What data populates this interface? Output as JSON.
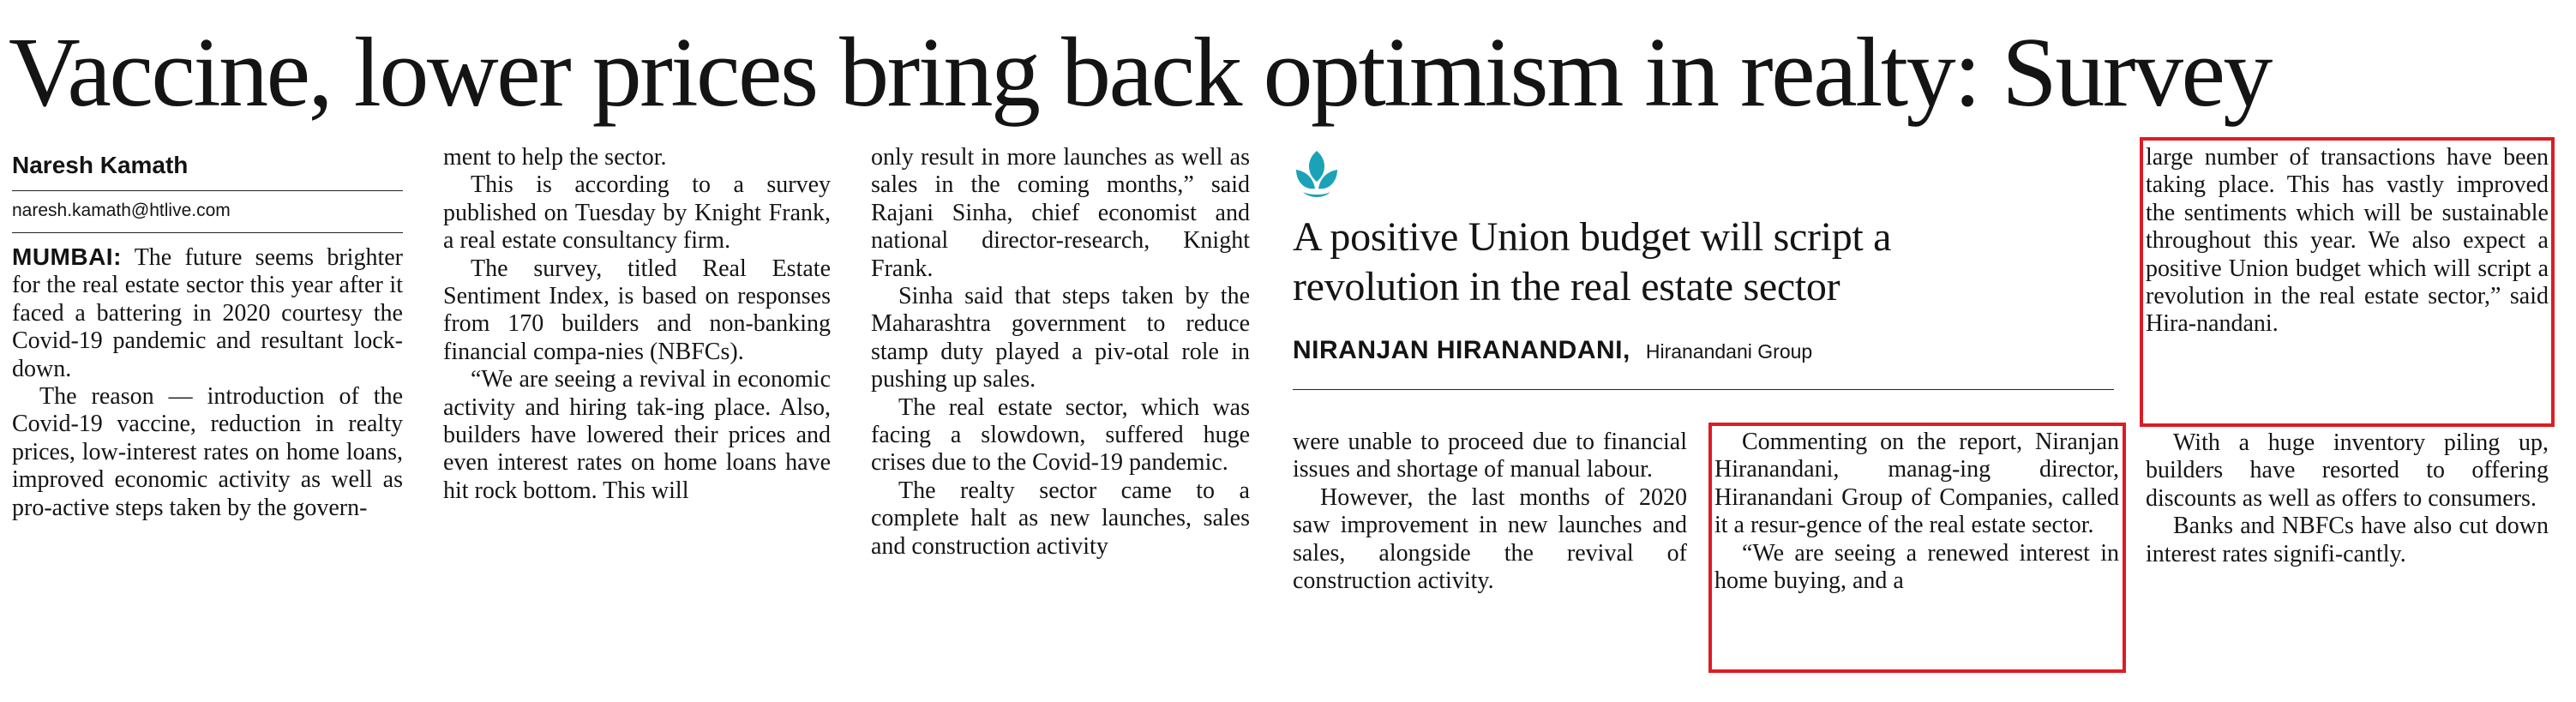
{
  "headline": "Vaccine, lower prices bring back optimism in realty: Survey",
  "byline": {
    "name": "Naresh Kamath",
    "email": "naresh.kamath@htlive.com"
  },
  "story": {
    "dateline": "MUMBAI:",
    "col1": {
      "p1": "The future seems brighter for the real estate sector this year after it faced a battering in 2020 courtesy the Covid-19 pandemic and resultant lock-down.",
      "p2": "The reason — introduction of the Covid-19 vaccine, reduction in realty prices, low-interest rates on home loans, improved economic activity as well as pro-active steps taken by the govern-"
    },
    "col2": {
      "p0": "ment to help the sector.",
      "p1": "This is according to a survey published on Tuesday by Knight Frank, a real estate consultancy firm.",
      "p2": "The survey, titled Real Estate Sentiment Index, is based on responses from 170 builders and non-banking financial compa-nies (NBFCs).",
      "p3": "“We are seeing a revival in economic activity and hiring tak-ing place. Also, builders have lowered their prices and even interest rates on home loans have hit rock bottom. This will"
    },
    "col3": {
      "p0": "only result in more launches as well as sales in the coming months,” said Rajani Sinha, chief economist and national director-research, Knight Frank.",
      "p1": "Sinha said that steps taken by the Maharashtra government to reduce stamp duty played a piv-otal role in pushing up sales.",
      "p2": "The real estate sector, which was facing a slowdown, suffered huge crises due to the Covid-19 pandemic.",
      "p3": "The realty sector came to a complete halt as new launches, sales and construction activity"
    },
    "col4": {
      "p0": "were unable to proceed due to financial issues and shortage of manual labour.",
      "p1": "However, the last months of 2020 saw improvement in new launches and sales, alongside the revival of construction activity."
    },
    "col5": {
      "p1": "Commenting on the report, Niranjan Hiranandani, manag-ing director, Hiranandani Group of Companies, called it a resur-gence of the real estate sector.",
      "p2": "“We are seeing a renewed interest in home buying, and a"
    },
    "col6": {
      "p0": "large number of transactions have been taking place. This has vastly improved the sentiments which will be sustainable throughout this year. We also expect a positive Union budget which will script a revolution in the real estate sector,” said Hira-nandani.",
      "p1": "With a huge inventory piling up, builders have resorted to offering discounts as well as offers to consumers.",
      "p2": "Banks and NBFCs have also cut down interest rates signifi-cantly."
    }
  },
  "quote_box": {
    "logo_icon": "lotus-logo-icon",
    "title": "A positive Union budget will script a revolution in the real estate sector",
    "name": "NIRANJAN HIRANANDANI,",
    "affiliation": "Hiranandani Group"
  },
  "colors": {
    "text": "#141414",
    "logo": "#1aa3b8",
    "highlight": "#dd1c24"
  }
}
